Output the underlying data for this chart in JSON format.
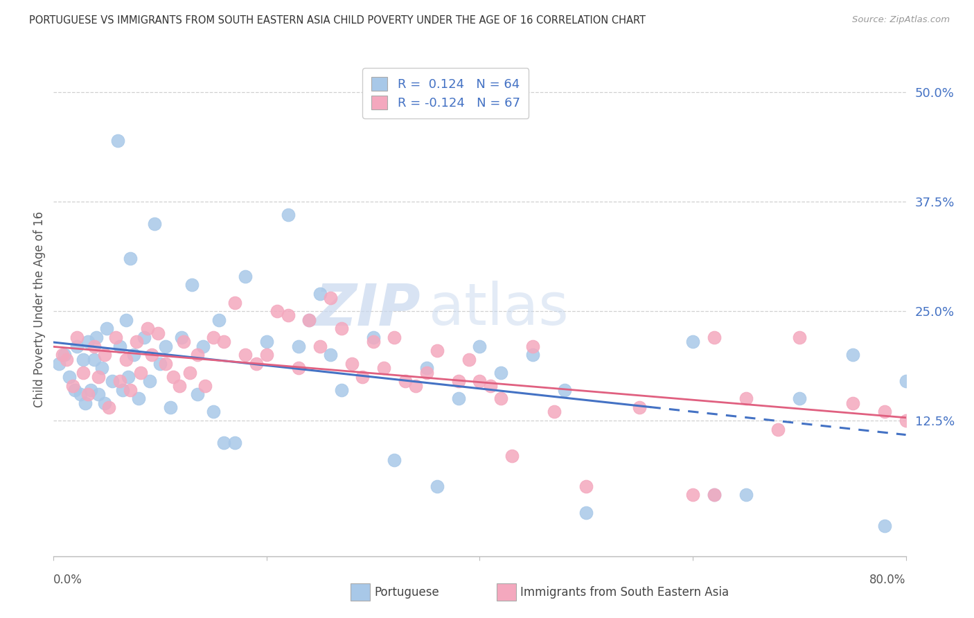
{
  "title": "PORTUGUESE VS IMMIGRANTS FROM SOUTH EASTERN ASIA CHILD POVERTY UNDER THE AGE OF 16 CORRELATION CHART",
  "source": "Source: ZipAtlas.com",
  "ylabel": "Child Poverty Under the Age of 16",
  "ytick_vals": [
    0.125,
    0.25,
    0.375,
    0.5
  ],
  "ytick_labels": [
    "12.5%",
    "25.0%",
    "37.5%",
    "50.0%"
  ],
  "xlim": [
    0.0,
    0.8
  ],
  "ylim": [
    -0.03,
    0.535
  ],
  "legend_r_blue": "0.124",
  "legend_n_blue": "64",
  "legend_r_pink": "-0.124",
  "legend_n_pink": "67",
  "legend_label_blue": "Portuguese",
  "legend_label_pink": "Immigrants from South Eastern Asia",
  "blue_scatter_color": "#a8c8e8",
  "pink_scatter_color": "#f4a8be",
  "blue_line_color": "#4472C4",
  "pink_line_color": "#E06080",
  "watermark_color": "#ccdaee",
  "blue_x": [
    0.005,
    0.01,
    0.015,
    0.02,
    0.022,
    0.025,
    0.028,
    0.03,
    0.032,
    0.035,
    0.038,
    0.04,
    0.042,
    0.045,
    0.048,
    0.05,
    0.055,
    0.06,
    0.062,
    0.065,
    0.068,
    0.07,
    0.072,
    0.075,
    0.08,
    0.085,
    0.09,
    0.095,
    0.1,
    0.105,
    0.11,
    0.12,
    0.13,
    0.135,
    0.14,
    0.15,
    0.155,
    0.16,
    0.17,
    0.18,
    0.2,
    0.22,
    0.23,
    0.24,
    0.25,
    0.26,
    0.27,
    0.3,
    0.32,
    0.35,
    0.36,
    0.38,
    0.4,
    0.42,
    0.45,
    0.48,
    0.5,
    0.6,
    0.62,
    0.65,
    0.7,
    0.75,
    0.78,
    0.8
  ],
  "blue_y": [
    0.19,
    0.2,
    0.175,
    0.16,
    0.21,
    0.155,
    0.195,
    0.145,
    0.215,
    0.16,
    0.195,
    0.22,
    0.155,
    0.185,
    0.145,
    0.23,
    0.17,
    0.445,
    0.21,
    0.16,
    0.24,
    0.175,
    0.31,
    0.2,
    0.15,
    0.22,
    0.17,
    0.35,
    0.19,
    0.21,
    0.14,
    0.22,
    0.28,
    0.155,
    0.21,
    0.135,
    0.24,
    0.1,
    0.1,
    0.29,
    0.215,
    0.36,
    0.21,
    0.24,
    0.27,
    0.2,
    0.16,
    0.22,
    0.08,
    0.185,
    0.05,
    0.15,
    0.21,
    0.18,
    0.2,
    0.16,
    0.02,
    0.215,
    0.04,
    0.04,
    0.15,
    0.2,
    0.005,
    0.17
  ],
  "pink_x": [
    0.008,
    0.012,
    0.018,
    0.022,
    0.028,
    0.032,
    0.038,
    0.042,
    0.048,
    0.052,
    0.058,
    0.062,
    0.068,
    0.072,
    0.078,
    0.082,
    0.088,
    0.092,
    0.098,
    0.105,
    0.112,
    0.118,
    0.122,
    0.128,
    0.135,
    0.142,
    0.15,
    0.16,
    0.17,
    0.18,
    0.19,
    0.2,
    0.21,
    0.22,
    0.23,
    0.24,
    0.25,
    0.26,
    0.27,
    0.28,
    0.29,
    0.3,
    0.31,
    0.32,
    0.33,
    0.34,
    0.35,
    0.36,
    0.38,
    0.39,
    0.4,
    0.41,
    0.42,
    0.43,
    0.45,
    0.47,
    0.5,
    0.55,
    0.6,
    0.62,
    0.65,
    0.68,
    0.7,
    0.75,
    0.78,
    0.8,
    0.62
  ],
  "pink_y": [
    0.2,
    0.195,
    0.165,
    0.22,
    0.18,
    0.155,
    0.21,
    0.175,
    0.2,
    0.14,
    0.22,
    0.17,
    0.195,
    0.16,
    0.215,
    0.18,
    0.23,
    0.2,
    0.225,
    0.19,
    0.175,
    0.165,
    0.215,
    0.18,
    0.2,
    0.165,
    0.22,
    0.215,
    0.26,
    0.2,
    0.19,
    0.2,
    0.25,
    0.245,
    0.185,
    0.24,
    0.21,
    0.265,
    0.23,
    0.19,
    0.175,
    0.215,
    0.185,
    0.22,
    0.17,
    0.165,
    0.18,
    0.205,
    0.17,
    0.195,
    0.17,
    0.165,
    0.15,
    0.085,
    0.21,
    0.135,
    0.05,
    0.14,
    0.04,
    0.04,
    0.15,
    0.115,
    0.22,
    0.145,
    0.135,
    0.125,
    0.22
  ]
}
